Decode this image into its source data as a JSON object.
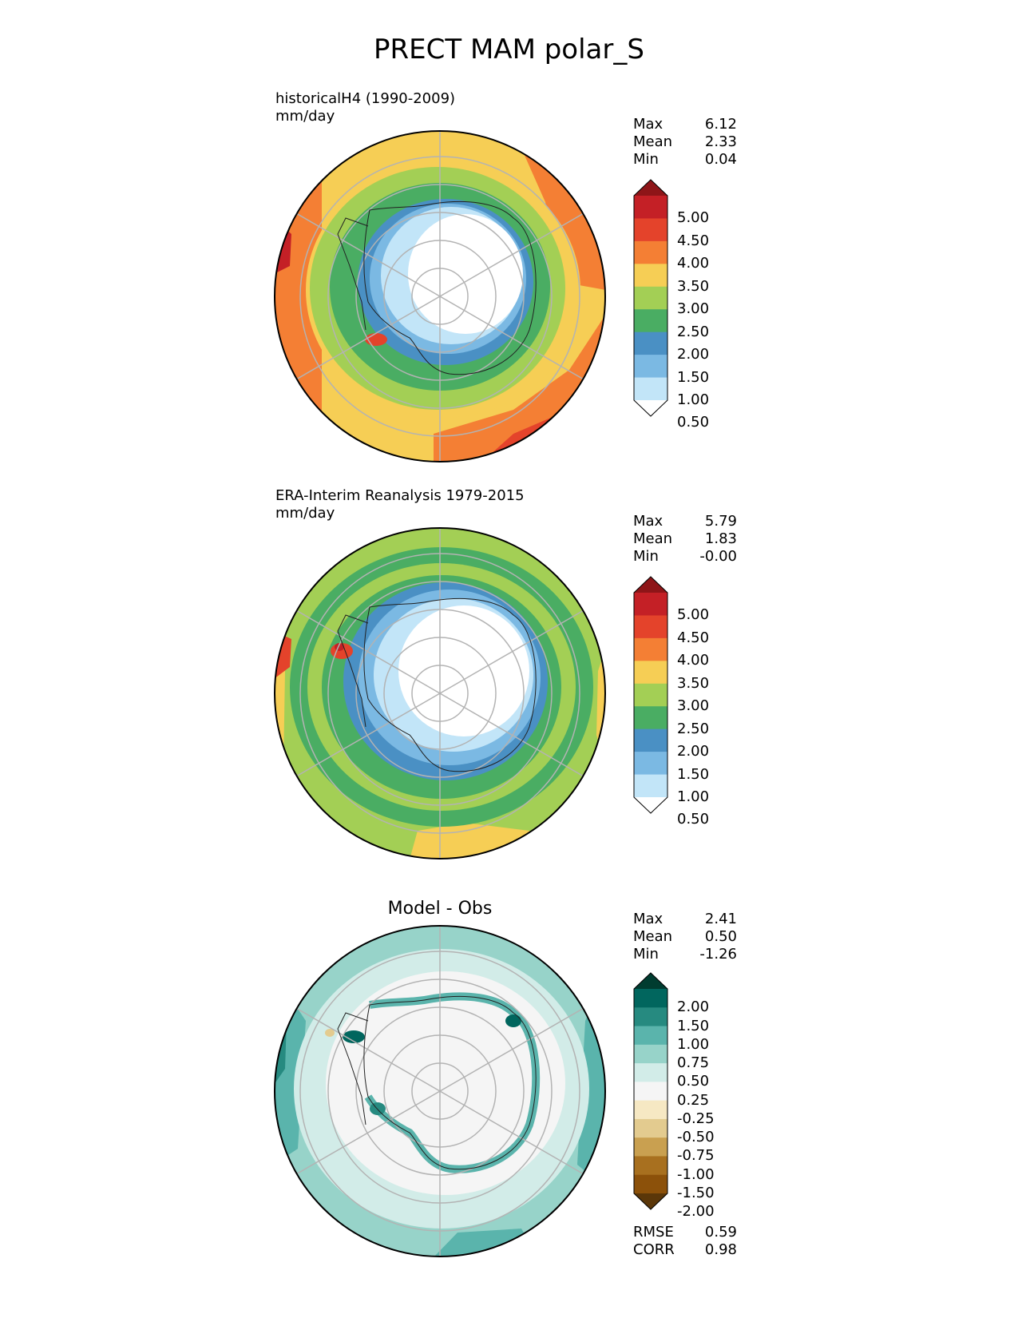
{
  "figure": {
    "title": "PRECT MAM polar_S"
  },
  "chart_data": [
    {
      "type": "heatmap",
      "projection": "south-polar-stereographic",
      "title": "historicalH4 (1990-2009)",
      "units": "mm/day",
      "stats": [
        {
          "label": "Max",
          "value": "6.12"
        },
        {
          "label": "Mean",
          "value": "2.33"
        },
        {
          "label": "Min",
          "value": "0.04"
        }
      ],
      "colorbar": {
        "tick_labels": [
          "5.00",
          "4.50",
          "4.00",
          "3.50",
          "3.00",
          "2.50",
          "2.00",
          "1.50",
          "1.00",
          "0.50"
        ],
        "colors": [
          "#8e1518",
          "#c42026",
          "#e4432b",
          "#f47f34",
          "#f6ce55",
          "#a3cf55",
          "#4aad63",
          "#4a90c4",
          "#7bb9e3",
          "#c2e5f8",
          "#ffffff"
        ],
        "extend": "both"
      }
    },
    {
      "type": "heatmap",
      "projection": "south-polar-stereographic",
      "title": "ERA-Interim Reanalysis 1979-2015",
      "units": "mm/day",
      "stats": [
        {
          "label": "Max",
          "value": "5.79"
        },
        {
          "label": "Mean",
          "value": "1.83"
        },
        {
          "label": "Min",
          "value": "-0.00"
        }
      ],
      "colorbar": {
        "tick_labels": [
          "5.00",
          "4.50",
          "4.00",
          "3.50",
          "3.00",
          "2.50",
          "2.00",
          "1.50",
          "1.00",
          "0.50"
        ],
        "colors": [
          "#8e1518",
          "#c42026",
          "#e4432b",
          "#f47f34",
          "#f6ce55",
          "#a3cf55",
          "#4aad63",
          "#4a90c4",
          "#7bb9e3",
          "#c2e5f8",
          "#ffffff"
        ],
        "extend": "both"
      }
    },
    {
      "type": "heatmap",
      "projection": "south-polar-stereographic",
      "title": "Model - Obs",
      "stats": [
        {
          "label": "Max",
          "value": "2.41"
        },
        {
          "label": "Mean",
          "value": "0.50"
        },
        {
          "label": "Min",
          "value": "-1.26"
        }
      ],
      "metrics": [
        {
          "label": "RMSE",
          "value": "0.59"
        },
        {
          "label": "CORR",
          "value": "0.98"
        }
      ],
      "colorbar": {
        "tick_labels": [
          "2.00",
          "1.50",
          "1.00",
          "0.75",
          "0.50",
          "0.25",
          "-0.25",
          "-0.50",
          "-0.75",
          "-1.00",
          "-1.50",
          "-2.00"
        ],
        "colors": [
          "#003c30",
          "#01665e",
          "#268a80",
          "#5ab4ac",
          "#97d3c9",
          "#d2ece8",
          "#f5f5f5",
          "#f6e8c3",
          "#e3cb8f",
          "#c9a050",
          "#a8701f",
          "#8c510a",
          "#5b3709"
        ],
        "extend": "both"
      }
    }
  ]
}
